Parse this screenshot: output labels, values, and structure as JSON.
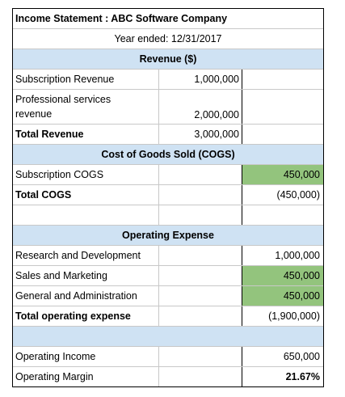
{
  "title": "Income Statement : ABC Software Company",
  "subtitle": "Year ended: 12/31/2017",
  "sections": {
    "revenue_header": "Revenue ($)",
    "cogs_header": "Cost of Goods Sold (COGS)",
    "opex_header": "Operating Expense"
  },
  "revenue": {
    "subscription_label": "Subscription Revenue",
    "subscription_value": "1,000,000",
    "prof_label_1": "Professional services",
    "prof_label_2": "revenue",
    "prof_value": "2,000,000",
    "total_label": "Total Revenue",
    "total_value": "3,000,000"
  },
  "cogs": {
    "subscription_label": "Subscription COGS",
    "subscription_value": "450,000",
    "total_label": "Total COGS",
    "total_value": "(450,000)"
  },
  "opex": {
    "rd_label": "Research and Development",
    "rd_value": "1,000,000",
    "sm_label": "Sales and Marketing",
    "sm_value": "450,000",
    "ga_label": "General and Administration",
    "ga_value": "450,000",
    "total_label": "Total operating expense",
    "total_value": "(1,900,000)"
  },
  "results": {
    "income_label": "Operating Income",
    "income_value": "650,000",
    "margin_label": "Operating Margin",
    "margin_value": "21.67%"
  },
  "colors": {
    "section_fill": "#cfe2f3",
    "highlight_fill": "#93c47d"
  }
}
